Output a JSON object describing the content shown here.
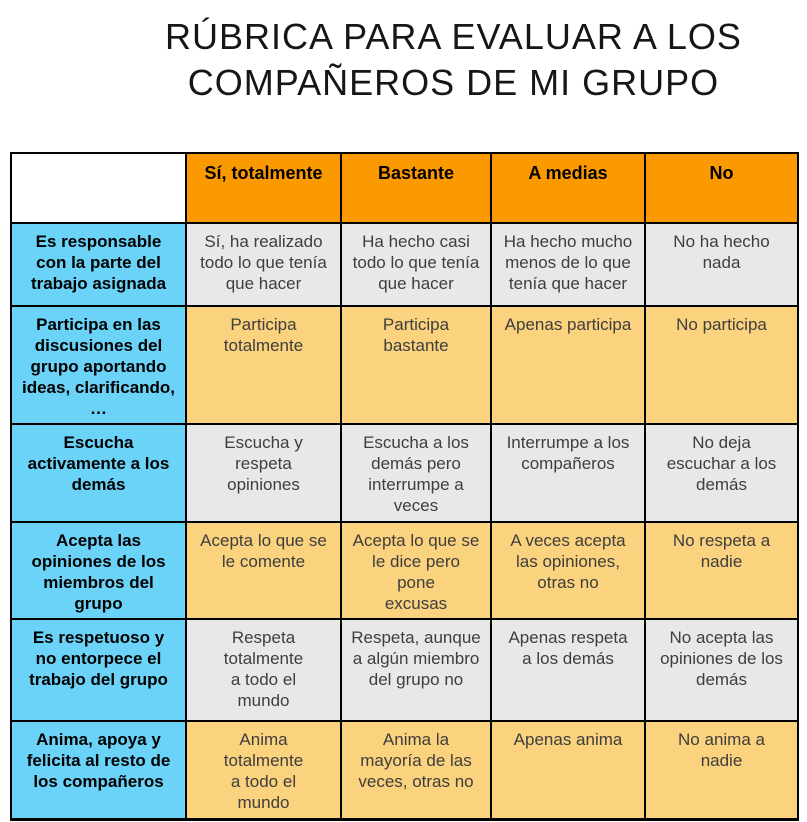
{
  "title": "RÚBRICA PARA EVALUAR A LOS\nCOMPAÑEROS DE MI GRUPO",
  "colors": {
    "header_bg": "#FB9900",
    "row_header_bg": "#6BD3F7",
    "cell_gray": "#E9E8E8",
    "cell_peach": "#FBD27D",
    "border": "#000000"
  },
  "table": {
    "columns": [
      "Sí, totalmente",
      "Bastante",
      "A medias",
      "No"
    ],
    "rows": [
      {
        "criterion": "Es responsable\ncon la parte del\ntrabajo asignada",
        "tone": "gray",
        "cells": [
          "Sí, ha realizado\ntodo lo que tenía\nque hacer",
          "Ha hecho casi\ntodo lo que tenía\nque hacer",
          "Ha hecho mucho\nmenos de lo que\ntenía que hacer",
          "No ha hecho\nnada"
        ]
      },
      {
        "criterion": "Participa en las\ndiscusiones del\ngrupo aportando\nideas, clarificando,\n…",
        "tone": "peach",
        "cells": [
          "Participa\ntotalmente",
          "Participa\nbastante",
          "Apenas participa",
          "No participa"
        ]
      },
      {
        "criterion": "Escucha\nactivamente a los\ndemás",
        "tone": "gray",
        "cells": [
          "Escucha y\nrespeta\nopiniones",
          "Escucha a los\ndemás pero\ninterrumpe a\nveces",
          "Interrumpe a los\ncompañeros",
          "No deja\nescuchar a los\ndemás"
        ]
      },
      {
        "criterion": "Acepta las\nopiniones de los\nmiembros del\ngrupo",
        "tone": "peach",
        "cells": [
          "Acepta lo que se\nle comente",
          "Acepta lo que se\nle dice pero\npone\nexcusas",
          "A veces acepta\nlas opiniones,\notras no",
          "No respeta a\nnadie"
        ]
      },
      {
        "criterion": "Es respetuoso y\nno entorpece el\ntrabajo del grupo",
        "tone": "gray",
        "cells": [
          "Respeta\ntotalmente\na todo el\nmundo",
          "Respeta, aunque\na algún miembro\ndel grupo no",
          "Apenas respeta\na los demás",
          "No acepta las\nopiniones de los\ndemás"
        ]
      },
      {
        "criterion": "Anima, apoya y\nfelicita al resto de\nlos compañeros",
        "tone": "peach",
        "cells": [
          "Anima\ntotalmente\na todo el\nmundo",
          "Anima  la\nmayoría de las\nveces, otras no",
          "Apenas anima",
          "No anima a\nnadie"
        ]
      }
    ]
  }
}
